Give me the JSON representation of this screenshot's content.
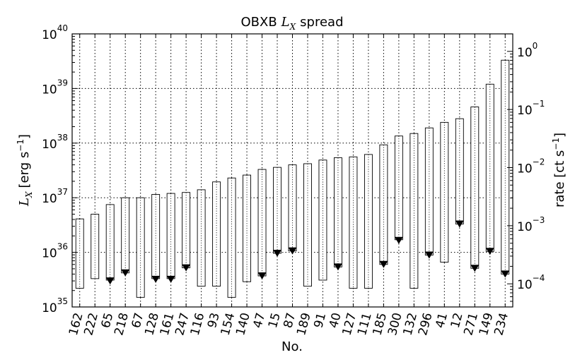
{
  "chart_data": {
    "type": "bar",
    "title": "OBXB L_X spread",
    "title_text": "OBXB",
    "title_symbol": "L",
    "title_symbol_sub": "X",
    "title_suffix": "spread",
    "xlabel": "No.",
    "ylabel_left": "L_X [erg s^-1]",
    "ylabel_right": "rate [ct s^-1]",
    "y_scale": "log",
    "ylim": [
      1e+35,
      1e+40
    ],
    "y_ticks": [
      {
        "value": 1e+35,
        "base": "10",
        "exp": "35"
      },
      {
        "value": 1e+36,
        "base": "10",
        "exp": "36"
      },
      {
        "value": 1e+37,
        "base": "10",
        "exp": "37"
      },
      {
        "value": 1e+38,
        "base": "10",
        "exp": "38"
      },
      {
        "value": 1e+39,
        "base": "10",
        "exp": "39"
      },
      {
        "value": 1e+40,
        "base": "10",
        "exp": "40"
      }
    ],
    "right_axis": {
      "scale": "log",
      "ylim": [
        4e-05,
        2.0
      ],
      "ticks": [
        {
          "value": 0.0001,
          "base": "10",
          "exp": "−4"
        },
        {
          "value": 0.001,
          "base": "10",
          "exp": "−3"
        },
        {
          "value": 0.01,
          "base": "10",
          "exp": "−2"
        },
        {
          "value": 0.1,
          "base": "10",
          "exp": "−1"
        },
        {
          "value": 1.0,
          "base": "10",
          "exp": "0"
        }
      ]
    },
    "grid": true,
    "categories": [
      "162",
      "222",
      "65",
      "218",
      "67",
      "128",
      "161",
      "247",
      "116",
      "93",
      "154",
      "140",
      "47",
      "15",
      "87",
      "189",
      "91",
      "40",
      "127",
      "111",
      "185",
      "300",
      "132",
      "296",
      "41",
      "12",
      "271",
      "149",
      "234"
    ],
    "series": [
      {
        "role": "range",
        "low": [
          2.2e+35,
          3.3e+35,
          3.1e+35,
          4.2e+35,
          1.5e+35,
          3.3e+35,
          3.3e+35,
          5.2e+35,
          2.4e+35,
          2.4e+35,
          1.5e+35,
          2.9e+35,
          3.7e+35,
          9.6e+35,
          1.06e+36,
          2.4e+35,
          3.1e+35,
          5.4e+35,
          2.2e+35,
          2.2e+35,
          6e+35,
          1.7e+36,
          2.2e+35,
          8.9e+35,
          6.6e+35,
          3.3e+36,
          5.1e+35,
          1.04e+36,
          4e+35
        ],
        "high": [
          4.1e+36,
          5e+36,
          7.5e+36,
          1e+37,
          1e+37,
          1.15e+37,
          1.2e+37,
          1.25e+37,
          1.4e+37,
          1.95e+37,
          2.3e+37,
          2.6e+37,
          3.3e+37,
          3.6e+37,
          4e+37,
          4.2e+37,
          4.9e+37,
          5.4e+37,
          5.6e+37,
          6.2e+37,
          9.3e+37,
          1.35e+38,
          1.5e+38,
          1.9e+38,
          2.4e+38,
          2.8e+38,
          4.6e+38,
          1.2e+39,
          3.3e+39
        ]
      }
    ],
    "upper_limit_markers": [
      {
        "category": "65",
        "value": 3e+35
      },
      {
        "category": "218",
        "value": 4.2e+35
      },
      {
        "category": "128",
        "value": 3.2e+35
      },
      {
        "category": "161",
        "value": 3.2e+35
      },
      {
        "category": "247",
        "value": 5.2e+35
      },
      {
        "category": "47",
        "value": 3.7e+35
      },
      {
        "category": "15",
        "value": 9.6e+35
      },
      {
        "category": "87",
        "value": 1.06e+36
      },
      {
        "category": "40",
        "value": 5.4e+35
      },
      {
        "category": "185",
        "value": 6e+35
      },
      {
        "category": "300",
        "value": 1.65e+36
      },
      {
        "category": "296",
        "value": 8.9e+35
      },
      {
        "category": "12",
        "value": 3.3e+36
      },
      {
        "category": "271",
        "value": 5.1e+35
      },
      {
        "category": "149",
        "value": 1.04e+36
      },
      {
        "category": "234",
        "value": 4e+35
      }
    ]
  }
}
